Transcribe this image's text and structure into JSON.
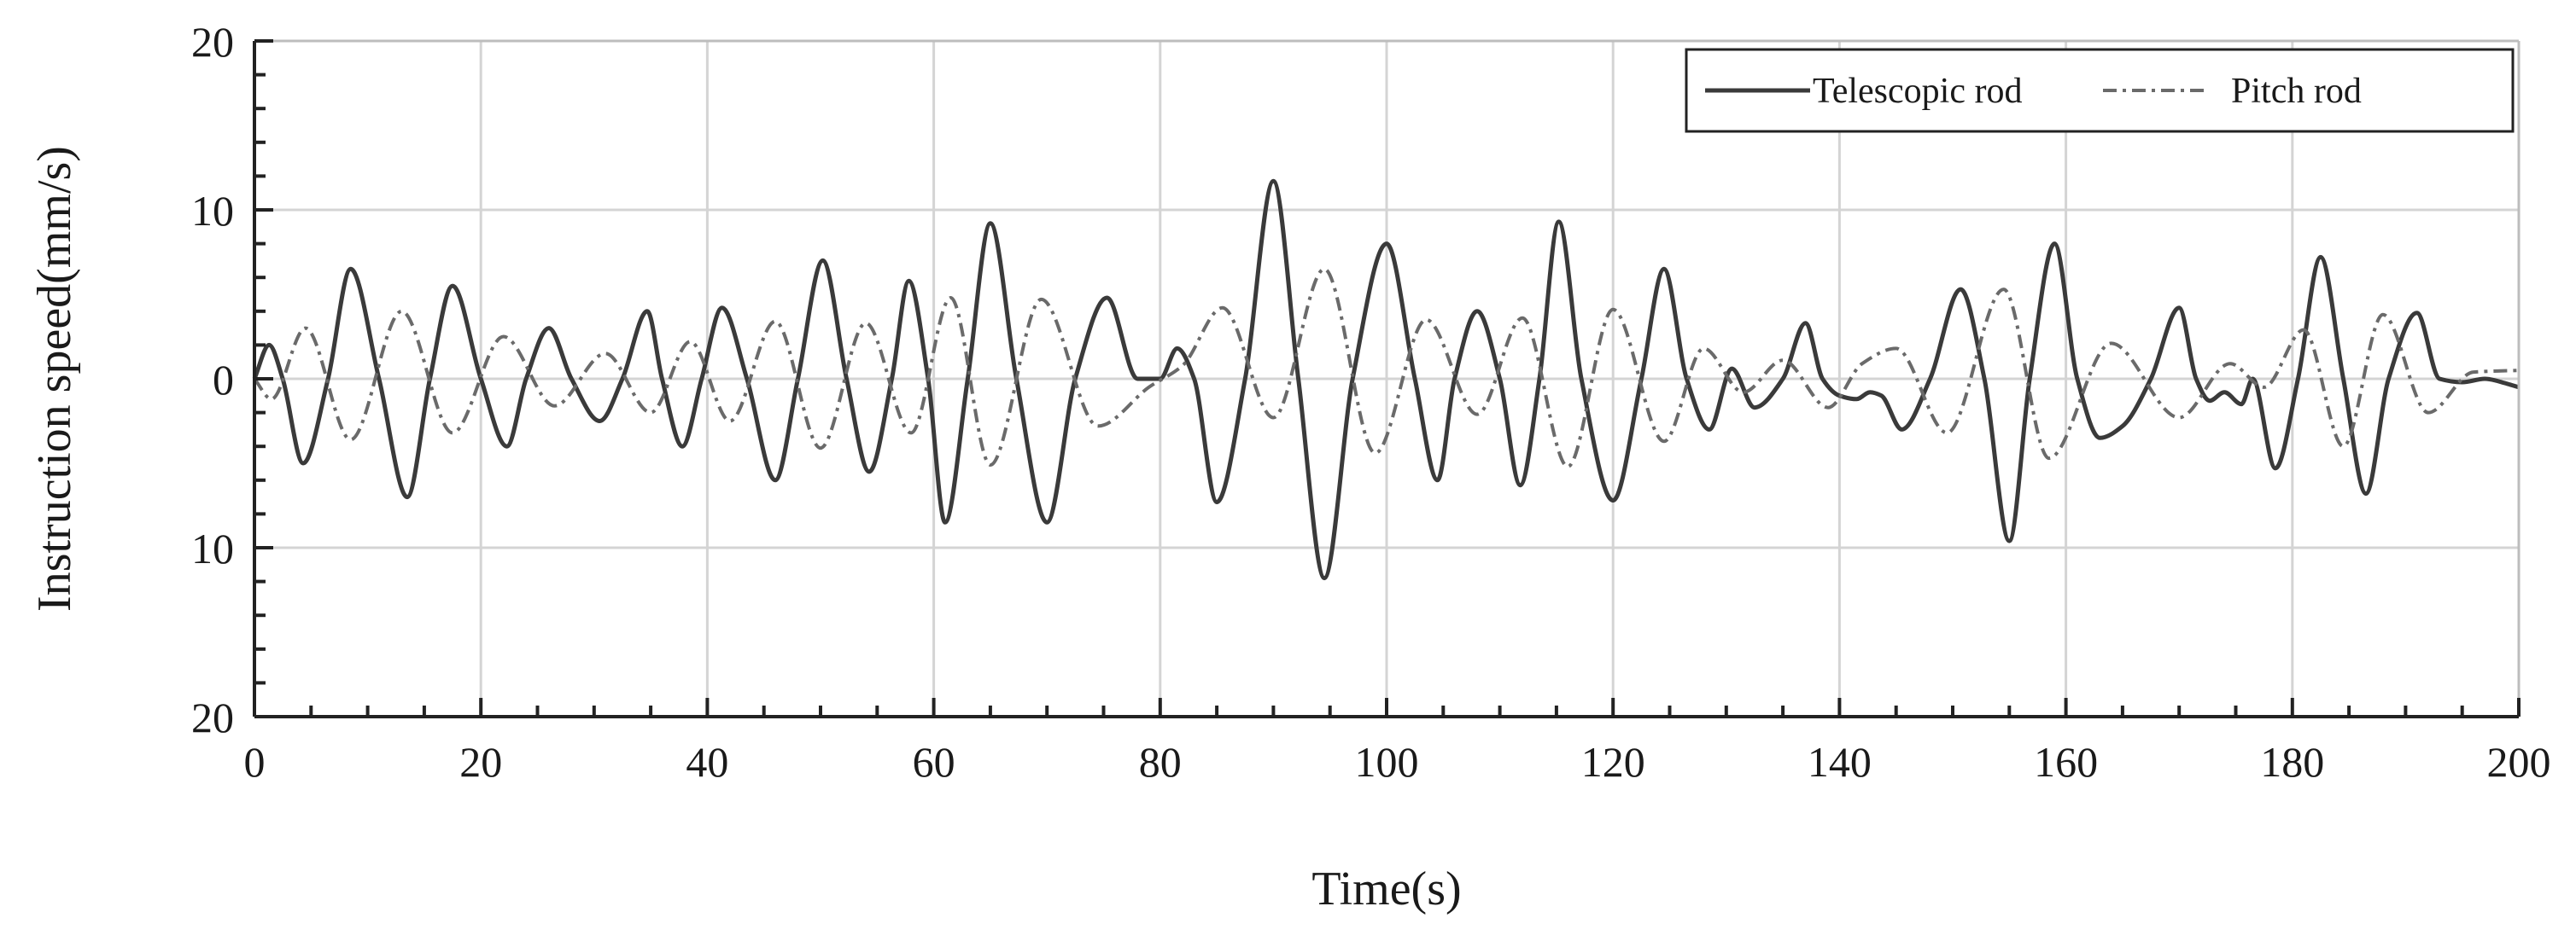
{
  "chart_data": {
    "type": "line",
    "xlabel": "Time(s)",
    "ylabel": "Instruction speed(mm/s)",
    "xlim": [
      0,
      200
    ],
    "ylim": [
      -20,
      20
    ],
    "x_ticks": [
      0,
      20,
      40,
      60,
      80,
      100,
      120,
      140,
      160,
      180,
      200
    ],
    "x_tick_labels": [
      "0",
      "20",
      "40",
      "60",
      "80",
      "100",
      "120",
      "140",
      "160",
      "180",
      "200"
    ],
    "y_ticks": [
      20,
      10,
      0,
      -10,
      -20
    ],
    "y_tick_labels": [
      "20",
      "10",
      "0",
      "10",
      "20"
    ],
    "grid": true,
    "legend_position": "top-right",
    "series": [
      {
        "name": "Telescopic rod",
        "style": "solid",
        "color": "#3a3a3a",
        "x": [
          0,
          1.3,
          2.5,
          4.3,
          6.5,
          8.5,
          11,
          13.5,
          15.5,
          17.5,
          20,
          22.3,
          24,
          26,
          28,
          30.5,
          32.5,
          34.7,
          36,
          37.8,
          39.5,
          41.3,
          43.5,
          46,
          48,
          50.2,
          52.3,
          54.3,
          56.3,
          57.8,
          59.5,
          61,
          63,
          65,
          67.3,
          70,
          72.5,
          75.3,
          78,
          80,
          81.5,
          83,
          85,
          87.5,
          90,
          92.2,
          94.5,
          97,
          100,
          102.5,
          104.5,
          106,
          108,
          110,
          111.8,
          113.5,
          115.2,
          117.2,
          120,
          122.5,
          124.5,
          126.5,
          128.5,
          130.5,
          132.5,
          135,
          137,
          138.5,
          140,
          141.5,
          142.7,
          143.7,
          145.5,
          148,
          150.7,
          152.8,
          155,
          156.8,
          159,
          161,
          163,
          165,
          167.5,
          170,
          171.5,
          172.7,
          174,
          175.5,
          176.5,
          178.5,
          180.5,
          182.5,
          184.5,
          186.5,
          188.5,
          191,
          193,
          195,
          197,
          199,
          200
        ],
        "values": [
          0,
          2,
          0,
          -5,
          0,
          6.5,
          0,
          -7,
          0,
          5.5,
          0,
          -4,
          0,
          3,
          0,
          -2.5,
          0,
          4,
          0,
          -4,
          0,
          4.2,
          0,
          -6,
          0,
          7,
          0,
          -5.5,
          0,
          5.8,
          0,
          -8.5,
          0,
          9.2,
          0,
          -8.5,
          0,
          4.8,
          0,
          0,
          1.8,
          0,
          -7.3,
          0,
          11.7,
          0,
          -11.8,
          0,
          8,
          0,
          -6,
          0,
          4,
          0,
          -6.3,
          0,
          9.3,
          0,
          -7.2,
          0,
          6.5,
          0,
          -3,
          0.6,
          -1.7,
          0,
          3.3,
          0,
          -1,
          -1.2,
          -0.8,
          -1,
          -3,
          0,
          5.3,
          0,
          -9.6,
          0,
          8,
          0,
          -3.5,
          -2.8,
          0,
          4.2,
          0,
          -1.3,
          -0.8,
          -1.5,
          0,
          -5.3,
          0,
          7.2,
          0,
          -6.8,
          0,
          3.9,
          0,
          -0.2,
          0,
          -0.3,
          -0.5
        ]
      },
      {
        "name": "Pitch rod",
        "style": "dash-dot",
        "color": "#6a6a6a",
        "x": [
          0,
          1.5,
          4.5,
          8.5,
          13,
          17.5,
          22,
          26.5,
          31,
          35,
          38.5,
          42,
          46,
          50,
          54,
          58,
          61.5,
          65,
          69.5,
          74.5,
          79,
          82,
          85.5,
          90,
          94.5,
          99,
          103.5,
          108,
          112,
          116,
          120,
          124.5,
          128,
          131.5,
          135,
          139,
          142,
          145,
          149.5,
          154.5,
          158.5,
          164,
          170,
          174.5,
          177.5,
          181,
          184.5,
          188,
          192,
          196,
          200
        ],
        "values": [
          0,
          -1.2,
          3,
          -3.6,
          4,
          -3.2,
          2.5,
          -1.6,
          1.5,
          -2,
          2.2,
          -2.5,
          3.4,
          -4.1,
          3.3,
          -3.2,
          4.8,
          -5.1,
          4.7,
          -2.8,
          -0.5,
          0.8,
          4.2,
          -2.3,
          6.5,
          -4.4,
          3.5,
          -2.1,
          3.6,
          -5.2,
          4.1,
          -3.7,
          1.8,
          -0.8,
          1.1,
          -1.7,
          0.9,
          1.8,
          -3.2,
          5.3,
          -4.7,
          2.1,
          -2.3,
          0.9,
          -0.5,
          2.9,
          -4,
          3.8,
          -2,
          0.4,
          0.5
        ]
      }
    ]
  }
}
